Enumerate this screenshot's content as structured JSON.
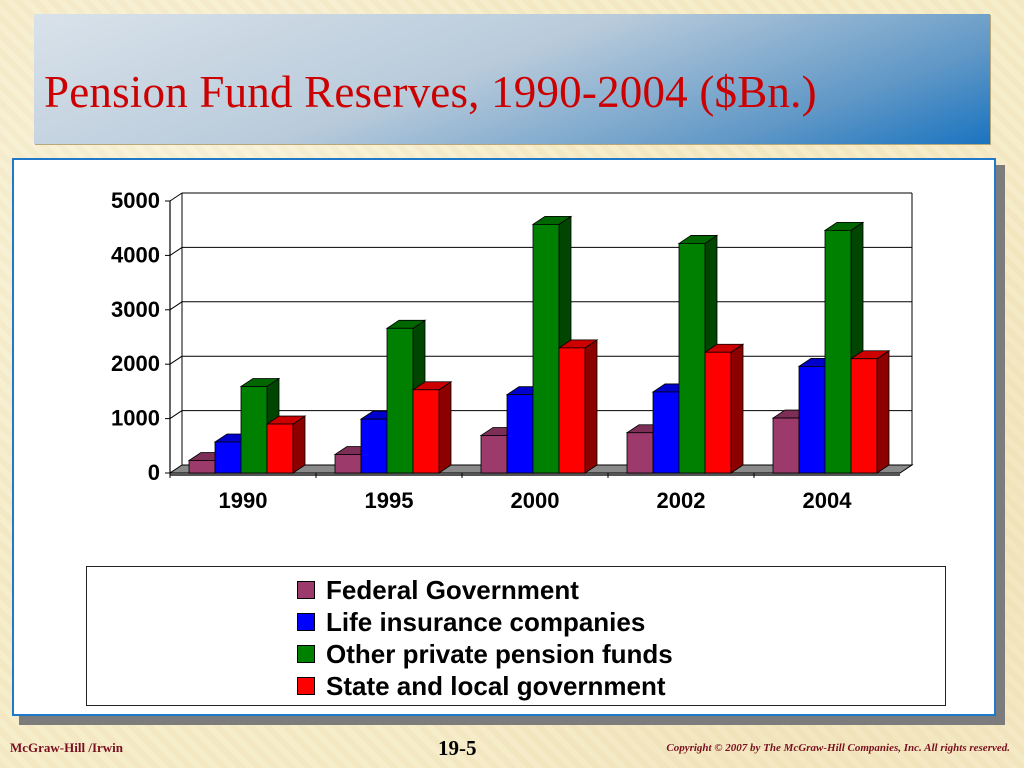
{
  "slide": {
    "title": "Pension Fund Reserves, 1990-2004 ($Bn.)"
  },
  "footer": {
    "publisher": "McGraw-Hill /Irwin",
    "page": "19-5",
    "copyright": "Copyright © 2007 by The McGraw-Hill Companies, Inc.  All rights reserved."
  },
  "colors": {
    "title_text": "#cc0000",
    "frame_border": "#1f78c8"
  },
  "chart_data": {
    "type": "bar",
    "categories": [
      "1990",
      "1995",
      "2000",
      "2002",
      "2004"
    ],
    "series": [
      {
        "name": "Federal Government",
        "values": [
          230,
          340,
          690,
          740,
          1010
        ],
        "color": "#9b3a6b"
      },
      {
        "name": "Life insurance companies",
        "values": [
          570,
          990,
          1440,
          1490,
          1960
        ],
        "color": "#0000ff"
      },
      {
        "name": "Other private pension funds",
        "values": [
          1590,
          2660,
          4570,
          4220,
          4460
        ],
        "color": "#008000"
      },
      {
        "name": "State and local government",
        "values": [
          900,
          1530,
          2300,
          2220,
          2100
        ],
        "color": "#ff0000"
      }
    ],
    "y_ticks": [
      "0",
      "1000",
      "2000",
      "3000",
      "4000",
      "5000"
    ],
    "ylim": [
      0,
      5000
    ],
    "grid": true,
    "style": "3d-clustered-columns",
    "legend_position": "bottom"
  }
}
